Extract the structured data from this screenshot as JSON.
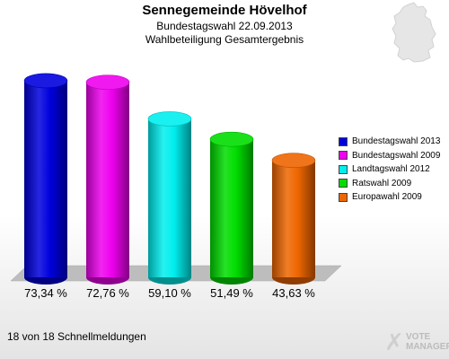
{
  "title": "Sennegemeinde Hövelhof",
  "subtitle1": "Bundestagswahl 22.09.2013",
  "subtitle2": "Wahlbeteiligung Gesamtergebnis",
  "footer": "18 von 18 Schnellmeldungen",
  "logo": {
    "line1": "VOTE",
    "line2": "MANAGER"
  },
  "map_icon": "germany-map-icon",
  "chart_data": {
    "type": "bar",
    "categories": [
      "Bundestagswahl 2013",
      "Bundestagswahl 2009",
      "Landtagswahl 2012",
      "Ratswahl 2009",
      "Europawahl 2009"
    ],
    "values": [
      73.34,
      72.76,
      59.1,
      51.49,
      43.63
    ],
    "value_labels": [
      "73,34 %",
      "72,76 %",
      "59,10 %",
      "51,49 %",
      "43,63 %"
    ],
    "colors": [
      "#0000dd",
      "#ee00ee",
      "#00eeee",
      "#00dd00",
      "#ee6600"
    ],
    "ylim": [
      0,
      80
    ],
    "legend_position": "right",
    "grid": false
  }
}
